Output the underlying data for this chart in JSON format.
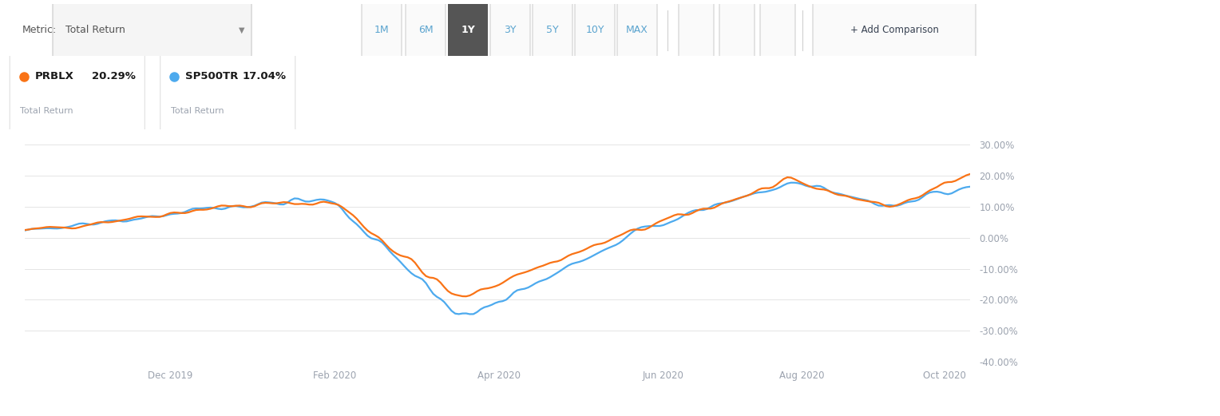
{
  "prblx_color": "#F97316",
  "sp500_color": "#4DAAEE",
  "background_color": "#FFFFFF",
  "grid_color": "#E0E0E0",
  "axis_label_color": "#9CA3AF",
  "ylim": [
    -40,
    35
  ],
  "yticks": [
    -40,
    -30,
    -20,
    -10,
    0,
    10,
    20,
    30
  ],
  "xtick_labels": [
    "Dec 2019",
    "Feb 2020",
    "Apr 2020",
    "Jun 2020",
    "Aug 2020",
    "Oct 2020"
  ],
  "legend_items": [
    {
      "symbol": "PRBLX",
      "value": "20.29%",
      "subtitle": "Total Return",
      "color": "#F97316"
    },
    {
      "symbol": "SP500TR",
      "value": "17.04%",
      "subtitle": "Total Return",
      "color": "#4DAAEE"
    }
  ],
  "metric_label": "Metric:",
  "metric_value": "Total Return",
  "buttons": [
    "1M",
    "6M",
    "1Y",
    "3Y",
    "5Y",
    "10Y",
    "MAX"
  ],
  "active_button": "1Y",
  "line_width": 1.6,
  "n_points": 260,
  "phases": {
    "p1": 55,
    "p2": 85,
    "p3": 120,
    "p4": 135,
    "p5": 175,
    "p6": 210,
    "p7": 238
  }
}
